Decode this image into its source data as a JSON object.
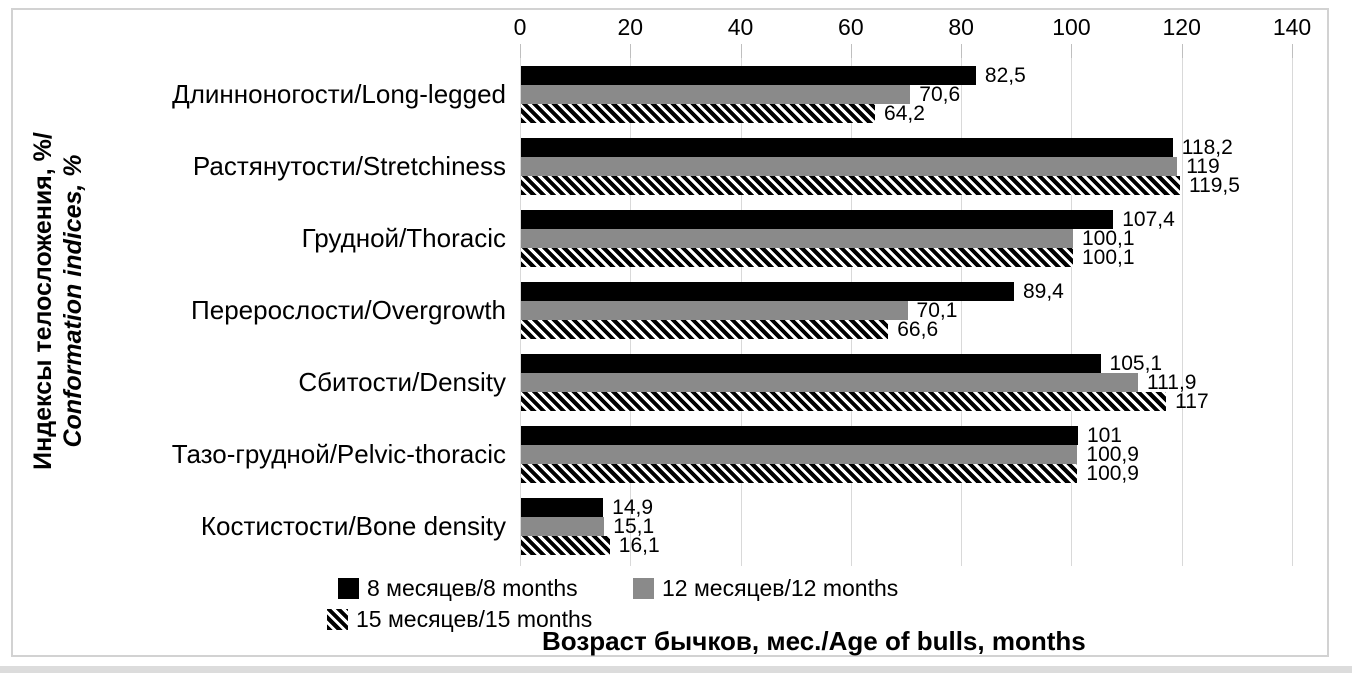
{
  "colors": {
    "background": "#ffffff",
    "frame_border": "#d2d2d2",
    "gridline": "#d9d9d9",
    "tick": "#bfbfbf",
    "series1": "#000000",
    "series2": "#8a8a8a",
    "hatch_foreground": "#000000",
    "hatch_background": "#ffffff",
    "text": "#000000"
  },
  "chart_data": {
    "type": "bar",
    "orientation": "horizontal",
    "categories": [
      "Длинноногости/Long-legged",
      "Растянутости/Stretchiness",
      "Грудной/Thoracic",
      "Перерослости/Overgrowth",
      "Сбитости/Density",
      "Тазо-грудной/Pelvic-thoracic",
      "Костистости/Bone density"
    ],
    "series": [
      {
        "name": "8 месяцев/8 months",
        "pattern": "solid",
        "color": "#000000",
        "values": [
          82.5,
          118.2,
          107.4,
          89.4,
          105.1,
          101,
          14.9
        ],
        "labels": [
          "82,5",
          "118,2",
          "107,4",
          "89,4",
          "105,1",
          "101",
          "14,9"
        ]
      },
      {
        "name": "12 месяцев/12 months",
        "pattern": "solid",
        "color": "#8a8a8a",
        "values": [
          70.6,
          119,
          100.1,
          70.1,
          111.9,
          100.9,
          15.1
        ],
        "labels": [
          "70,6",
          "119",
          "100,1",
          "70,1",
          "111,9",
          "100,9",
          "15,1"
        ]
      },
      {
        "name": "15 месяцев/15 months",
        "pattern": "diagonal-hatch",
        "color": "#000000",
        "values": [
          64.2,
          119.5,
          100.1,
          66.6,
          117,
          100.9,
          16.1
        ],
        "labels": [
          "64,2",
          "119,5",
          "100,1",
          "66,6",
          "117",
          "100,9",
          "16,1"
        ]
      }
    ],
    "x_axis": {
      "position": "top",
      "min": 0,
      "max": 140,
      "tick_interval": 20,
      "ticks": [
        "0",
        "20",
        "40",
        "60",
        "80",
        "100",
        "120",
        "140"
      ],
      "gridlines": true
    },
    "y_axis_title_ru": "Индексы телосложения, %/",
    "y_axis_title_en": "Conformation indices, %",
    "x_axis_title": "Возраст бычков, мес./Age of bulls, months",
    "legend_position": "bottom"
  }
}
